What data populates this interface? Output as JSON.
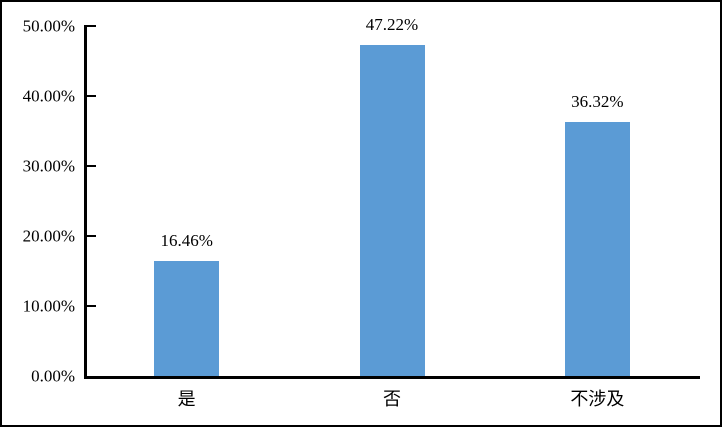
{
  "chart_data": {
    "type": "bar",
    "title": "",
    "xlabel": "",
    "ylabel": "",
    "categories": [
      "是",
      "否",
      "不涉及"
    ],
    "values": [
      16.46,
      47.22,
      36.32
    ],
    "data_labels": [
      "16.46%",
      "47.22%",
      "36.32%"
    ],
    "y_tick_values": [
      0,
      10,
      20,
      30,
      40,
      50
    ],
    "y_tick_labels": [
      "0.00%",
      "10.00%",
      "20.00%",
      "30.00%",
      "40.00%",
      "50.00%"
    ],
    "ylim": [
      0,
      50
    ],
    "grid": false,
    "legend_position": "none",
    "bar_color": "#5B9BD5",
    "axis_color": "#000000",
    "text_color": "#000000",
    "frame_border_color": "#000000",
    "background_color": "#FFFFFF"
  }
}
